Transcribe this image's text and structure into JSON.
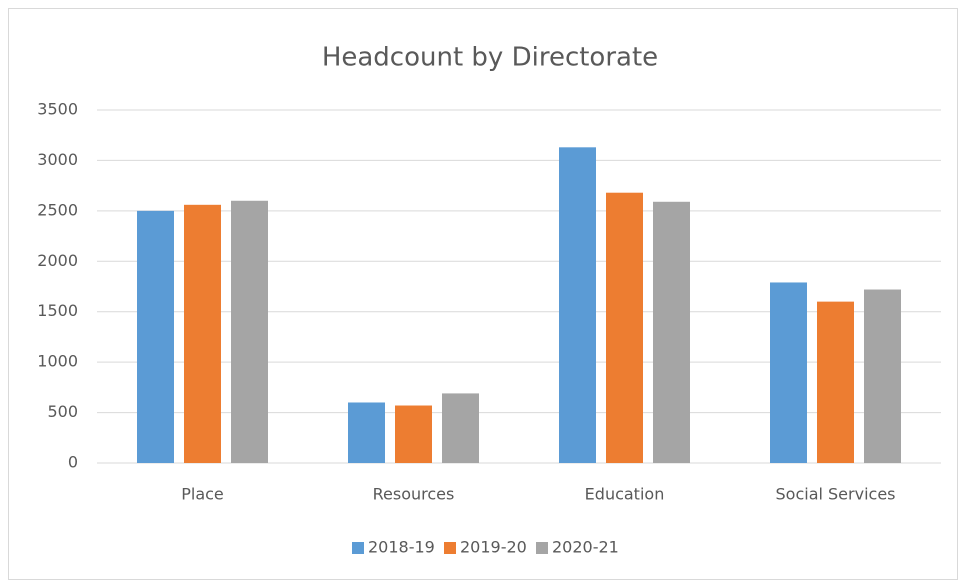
{
  "chart_data": {
    "type": "bar",
    "title": "Headcount by Directorate",
    "categories": [
      "Place",
      "Resources",
      "Education",
      "Social Services"
    ],
    "series": [
      {
        "name": "2018-19",
        "color": "#5b9bd5",
        "values": [
          2500,
          600,
          3130,
          1790
        ]
      },
      {
        "name": "2019-20",
        "color": "#ed7d31",
        "values": [
          2560,
          570,
          2680,
          1600
        ]
      },
      {
        "name": "2020-21",
        "color": "#a5a5a5",
        "values": [
          2600,
          690,
          2590,
          1720
        ]
      }
    ],
    "ylim": [
      0,
      3500
    ],
    "yticks": [
      0,
      500,
      1000,
      1500,
      2000,
      2500,
      3000,
      3500
    ],
    "grid": true,
    "legend": "bottom"
  }
}
